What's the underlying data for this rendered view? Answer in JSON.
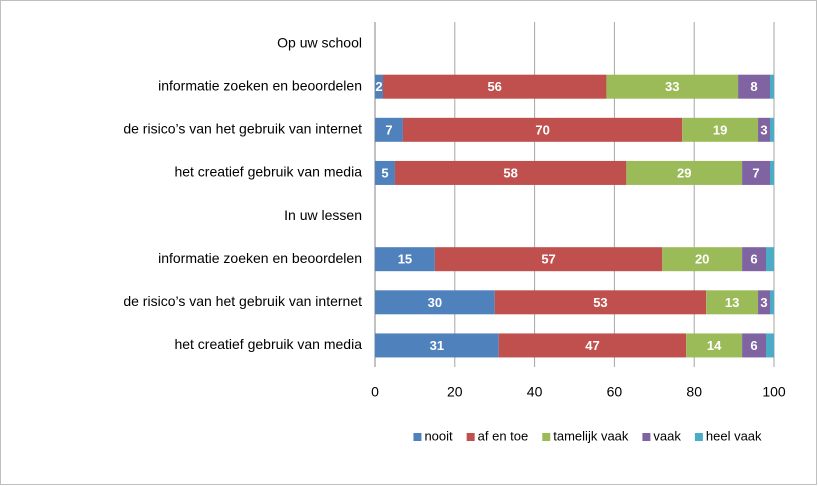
{
  "chart_data": {
    "type": "bar",
    "orientation": "horizontal",
    "stacked": true,
    "categories": [
      "Op uw school",
      "informatie zoeken en beoordelen",
      "de risico’s van het gebruik van internet",
      "het creatief gebruik van media",
      "In uw lessen",
      "informatie zoeken en beoordelen",
      "de risico’s van het gebruik van internet",
      "het creatief gebruik van media"
    ],
    "series": [
      {
        "name": "nooit",
        "color": "#4f81bd",
        "data_labels": true,
        "values": [
          null,
          2,
          7,
          5,
          null,
          15,
          30,
          31
        ]
      },
      {
        "name": "af en toe",
        "color": "#c0504d",
        "data_labels": true,
        "values": [
          null,
          56,
          70,
          58,
          null,
          57,
          53,
          47
        ]
      },
      {
        "name": "tamelijk vaak",
        "color": "#9bbb59",
        "data_labels": true,
        "values": [
          null,
          33,
          19,
          29,
          null,
          20,
          13,
          14
        ]
      },
      {
        "name": "vaak",
        "color": "#8064a2",
        "data_labels": true,
        "values": [
          null,
          8,
          3,
          7,
          null,
          6,
          3,
          6
        ]
      },
      {
        "name": "heel vaak",
        "color": "#4bacc6",
        "data_labels": false,
        "values": [
          null,
          1,
          1,
          1,
          null,
          2,
          1,
          2
        ]
      }
    ],
    "xlim": [
      0,
      100
    ],
    "xticks": [
      0,
      20,
      40,
      60,
      80,
      100
    ],
    "grid": true,
    "legend": "bottom"
  }
}
